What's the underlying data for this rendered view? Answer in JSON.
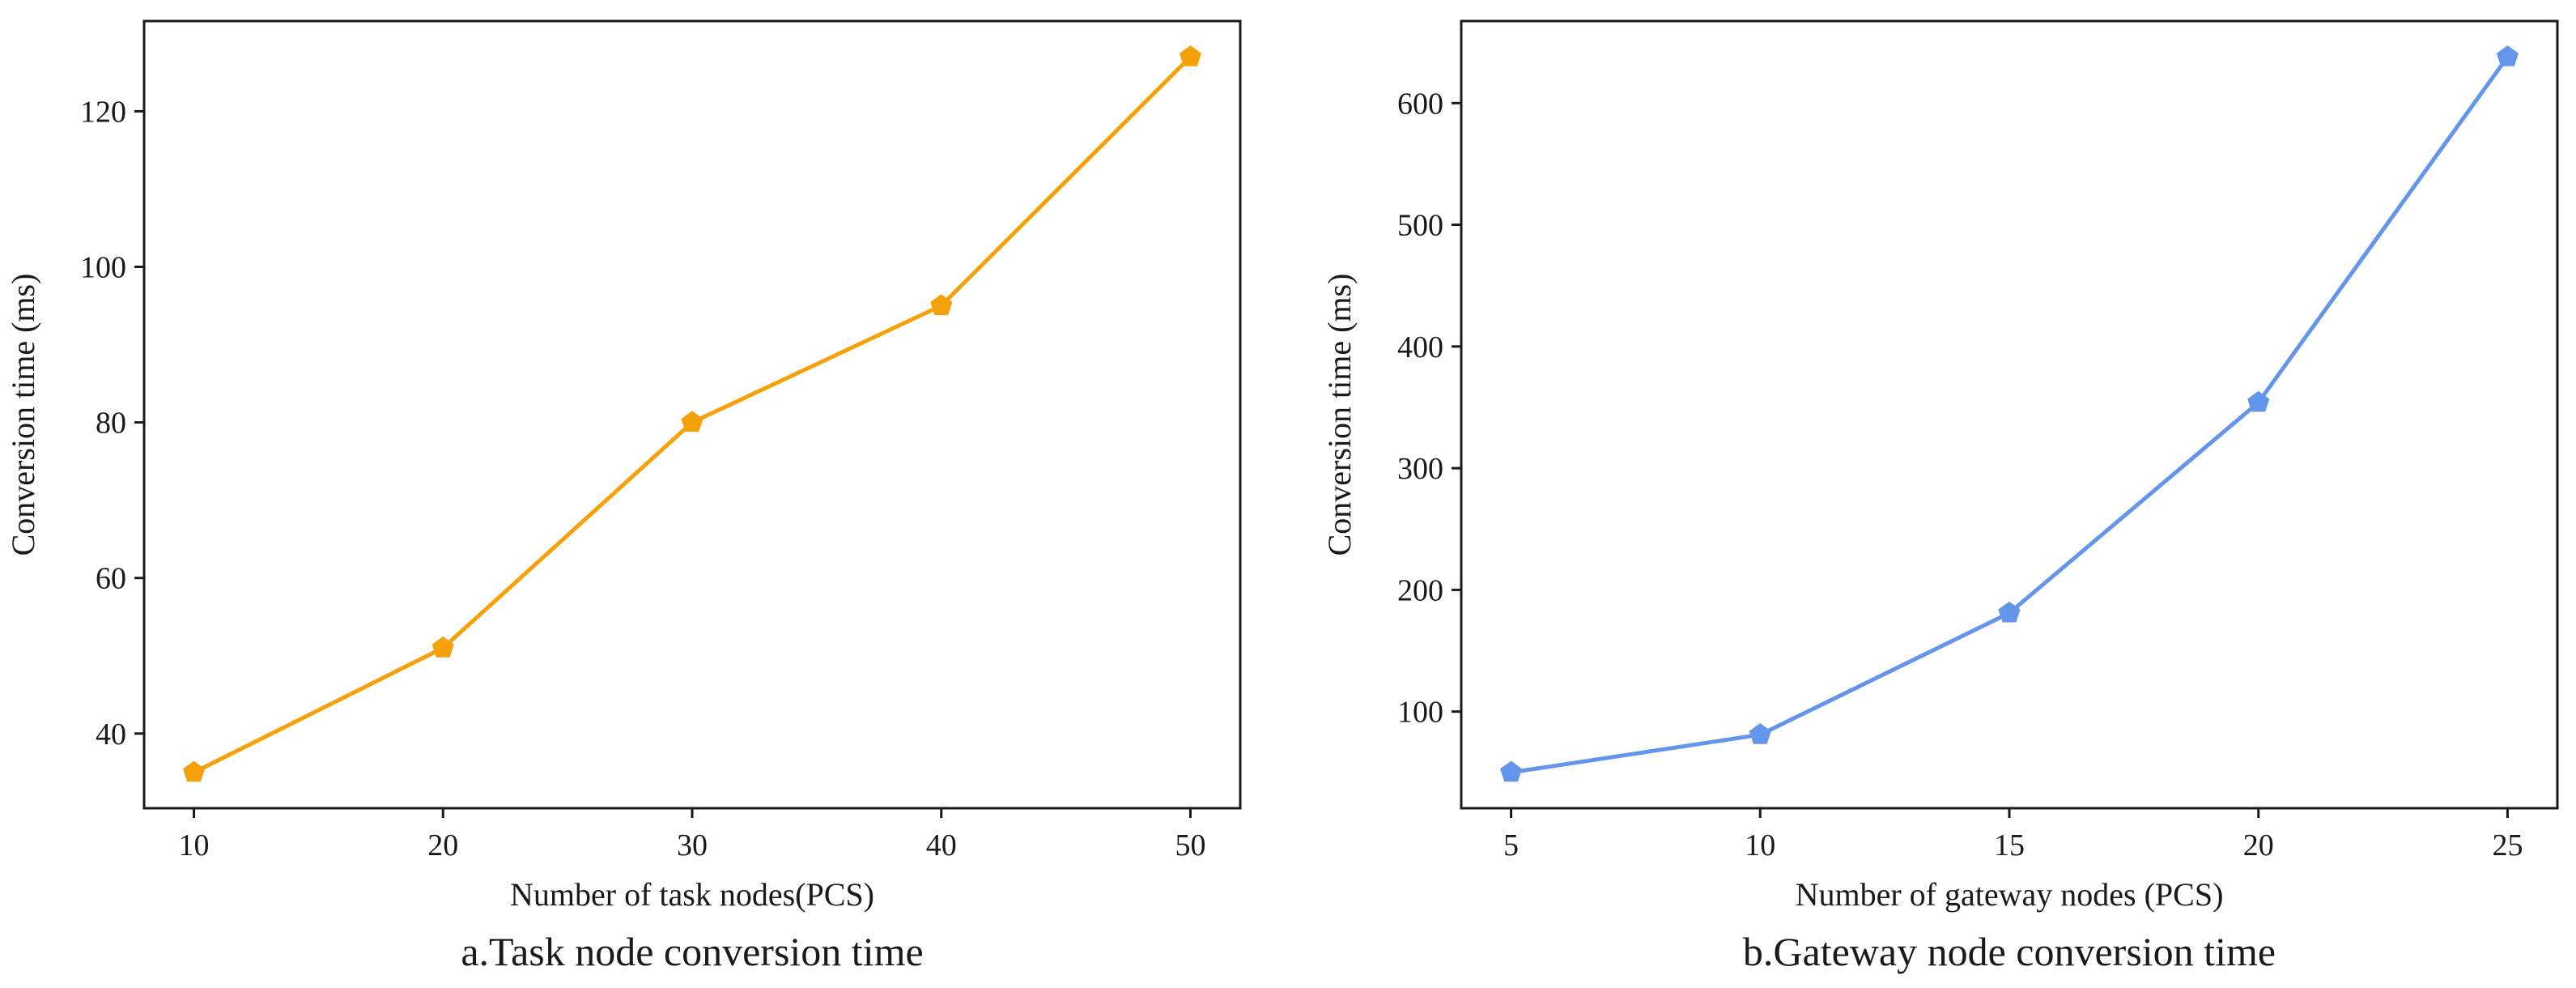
{
  "chart_data": [
    {
      "type": "line",
      "caption": "a.Task node conversion time",
      "xlabel": "Number of task nodes(PCS)",
      "ylabel": "Conversion time (ms)",
      "x": [
        10,
        20,
        30,
        40,
        50
      ],
      "series": [
        {
          "name": "Task node conversion time",
          "values": [
            35,
            51,
            80,
            95,
            127
          ],
          "color": "#f5a20a"
        }
      ],
      "xticks": [
        10,
        20,
        30,
        40,
        50
      ],
      "yticks": [
        40,
        60,
        80,
        100,
        120
      ],
      "xlim": [
        8,
        52
      ],
      "ylim": [
        30.4,
        131.6
      ],
      "marker": "pentagon",
      "grid": false
    },
    {
      "type": "line",
      "caption": "b.Gateway node conversion time",
      "xlabel": "Number of gateway nodes (PCS)",
      "ylabel": "Conversion time (ms)",
      "x": [
        5,
        10,
        15,
        20,
        25
      ],
      "series": [
        {
          "name": "Gateway node conversion time",
          "values": [
            50,
            81,
            181,
            354,
            638
          ],
          "color": "#6495ed"
        }
      ],
      "xticks": [
        5,
        10,
        15,
        20,
        25
      ],
      "yticks": [
        100,
        200,
        300,
        400,
        500,
        600
      ],
      "xlim": [
        4,
        26
      ],
      "ylim": [
        20.6,
        667.4
      ],
      "marker": "pentagon",
      "grid": false
    }
  ]
}
